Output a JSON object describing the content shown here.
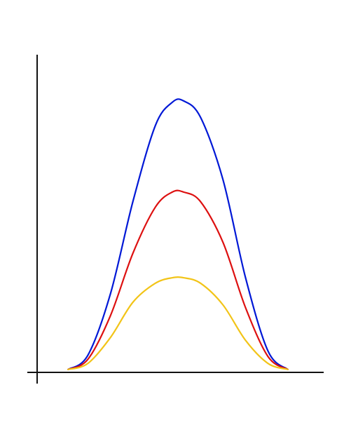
{
  "chart_data": {
    "type": "line",
    "title": "",
    "xlabel": "",
    "ylabel": "",
    "grid": false,
    "legend": "none",
    "xlim": [
      0,
      1
    ],
    "ylim": [
      0,
      1
    ],
    "x_ticks": [],
    "y_ticks": [],
    "series": [
      {
        "color": "#0018d6",
        "x": [
          0.11,
          0.18,
          0.26,
          0.34,
          0.42,
          0.48,
          0.52,
          0.58,
          0.66,
          0.74,
          0.82,
          0.89
        ],
        "y": [
          0.003,
          0.055,
          0.28,
          0.62,
          0.9,
          0.985,
          0.99,
          0.93,
          0.7,
          0.34,
          0.07,
          0.003
        ]
      },
      {
        "color": "#dd1010",
        "x": [
          0.11,
          0.18,
          0.26,
          0.34,
          0.42,
          0.48,
          0.52,
          0.58,
          0.66,
          0.74,
          0.82,
          0.89
        ],
        "y": [
          0.003,
          0.04,
          0.2,
          0.43,
          0.6,
          0.655,
          0.655,
          0.62,
          0.47,
          0.23,
          0.05,
          0.003
        ]
      },
      {
        "color": "#f2c418",
        "x": [
          0.11,
          0.18,
          0.26,
          0.34,
          0.42,
          0.48,
          0.52,
          0.58,
          0.66,
          0.74,
          0.82,
          0.89
        ],
        "y": [
          0.003,
          0.025,
          0.12,
          0.25,
          0.32,
          0.34,
          0.34,
          0.32,
          0.24,
          0.11,
          0.025,
          0.003
        ]
      }
    ]
  }
}
